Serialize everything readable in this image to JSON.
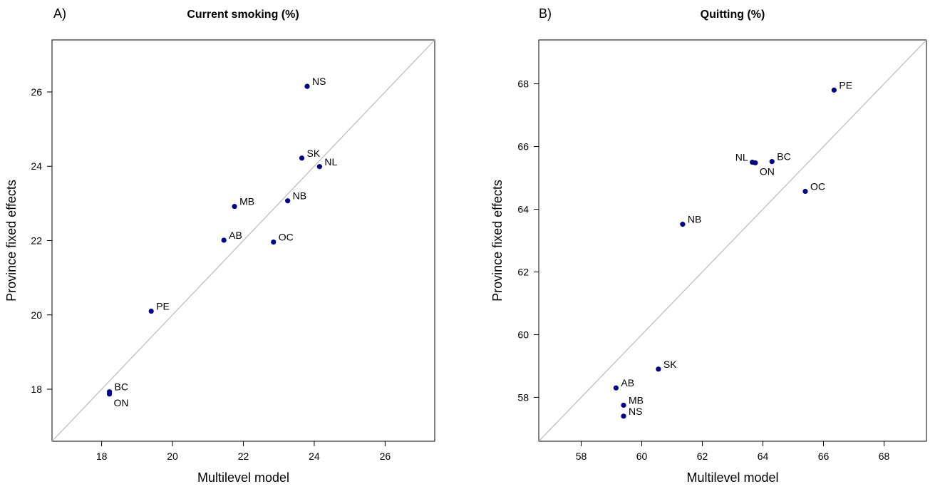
{
  "chart_data": [
    {
      "type": "scatter",
      "panel_label": "A)",
      "title": "Current smoking (%)",
      "xlabel": "Multilevel model",
      "ylabel": "Province fixed effects",
      "xlim": [
        16.6,
        27.4
      ],
      "ylim": [
        16.6,
        27.4
      ],
      "xticks": [
        18,
        20,
        22,
        24,
        26
      ],
      "yticks": [
        18,
        20,
        22,
        24,
        26
      ],
      "reference_line": "y = x",
      "grid": false,
      "legend": "none",
      "point_color": "#00008b",
      "line_color": "#bbbbbb",
      "points": [
        {
          "label": "NS",
          "x": 23.8,
          "y": 26.15,
          "label_pos": "right"
        },
        {
          "label": "SK",
          "x": 23.65,
          "y": 24.22,
          "label_pos": "right"
        },
        {
          "label": "NL",
          "x": 24.15,
          "y": 23.99,
          "label_pos": "right"
        },
        {
          "label": "MB",
          "x": 21.75,
          "y": 22.92,
          "label_pos": "right"
        },
        {
          "label": "NB",
          "x": 23.25,
          "y": 23.07,
          "label_pos": "right"
        },
        {
          "label": "AB",
          "x": 21.45,
          "y": 22.01,
          "label_pos": "right"
        },
        {
          "label": "OC",
          "x": 22.85,
          "y": 21.96,
          "label_pos": "right"
        },
        {
          "label": "PE",
          "x": 19.4,
          "y": 20.1,
          "label_pos": "right"
        },
        {
          "label": "BC",
          "x": 18.22,
          "y": 17.93,
          "label_pos": "right"
        },
        {
          "label": "ON",
          "x": 18.22,
          "y": 17.87,
          "label_pos": "below"
        }
      ]
    },
    {
      "type": "scatter",
      "panel_label": "B)",
      "title": "Quitting (%)",
      "xlabel": "Multilevel model",
      "ylabel": "Province fixed effects",
      "xlim": [
        56.6,
        69.4
      ],
      "ylim": [
        56.6,
        69.4
      ],
      "xticks": [
        58,
        60,
        62,
        64,
        66,
        68
      ],
      "yticks": [
        58,
        60,
        62,
        64,
        66,
        68
      ],
      "reference_line": "y = x",
      "grid": false,
      "legend": "none",
      "point_color": "#00008b",
      "line_color": "#bbbbbb",
      "points": [
        {
          "label": "PE",
          "x": 66.35,
          "y": 67.8,
          "label_pos": "right"
        },
        {
          "label": "NL",
          "x": 63.65,
          "y": 65.5,
          "label_pos": "left"
        },
        {
          "label": "ON",
          "x": 63.75,
          "y": 65.48,
          "label_pos": "below"
        },
        {
          "label": "BC",
          "x": 64.3,
          "y": 65.52,
          "label_pos": "right"
        },
        {
          "label": "OC",
          "x": 65.4,
          "y": 64.57,
          "label_pos": "right"
        },
        {
          "label": "NB",
          "x": 61.35,
          "y": 63.52,
          "label_pos": "right"
        },
        {
          "label": "SK",
          "x": 60.55,
          "y": 58.9,
          "label_pos": "right"
        },
        {
          "label": "AB",
          "x": 59.15,
          "y": 58.3,
          "label_pos": "right"
        },
        {
          "label": "MB",
          "x": 59.4,
          "y": 57.75,
          "label_pos": "right"
        },
        {
          "label": "NS",
          "x": 59.4,
          "y": 57.4,
          "label_pos": "right"
        }
      ]
    }
  ]
}
